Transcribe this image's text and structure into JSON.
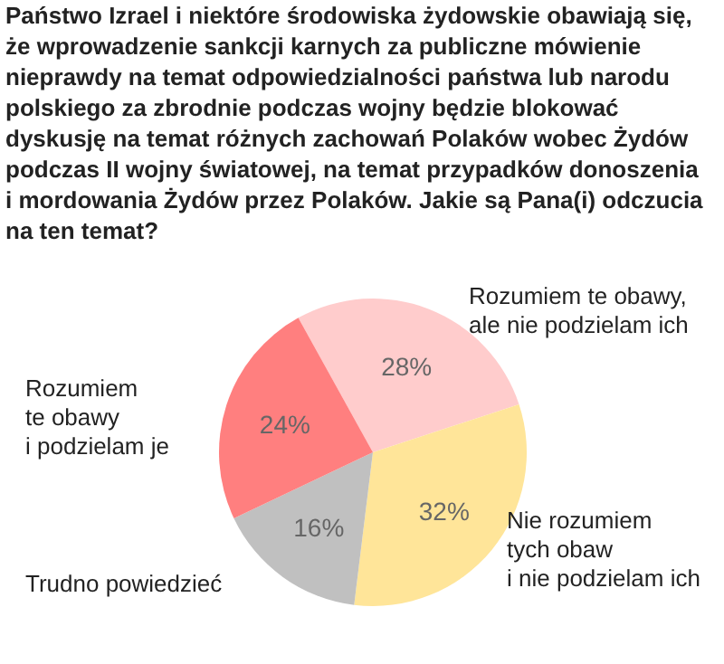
{
  "chart_data": {
    "type": "pie",
    "title": "Państwo Izrael i niektóre środowiska żydowskie obawiają się, że wprowadzenie sankcji karnych za publiczne mówienie nieprawdy na temat odpowiedzialności państwa lub narodu polskiego za zbrodnie podczas wojny będzie blokować dyskusję na temat różnych zachowań Polaków wobec Żydów podczas II wojny światowej, na temat przypadków donoszenia i mordowania Żydów przez Polaków. Jakie są Pana(i) odczucia na ten temat?",
    "categories": [
      "Rozumiem te obawy,\nale nie podzielam ich",
      "Nie rozumiem\ntych obaw\ni nie podzielam ich",
      "Trudno powiedzieć",
      "Rozumiem\nte obawy\ni podzielam je"
    ],
    "values": [
      28,
      32,
      16,
      24
    ],
    "colors": [
      "#ffcccc",
      "#ffe599",
      "#c0c0c0",
      "#ff7f7f"
    ],
    "value_labels": [
      "28%",
      "32%",
      "16%",
      "24%"
    ]
  }
}
